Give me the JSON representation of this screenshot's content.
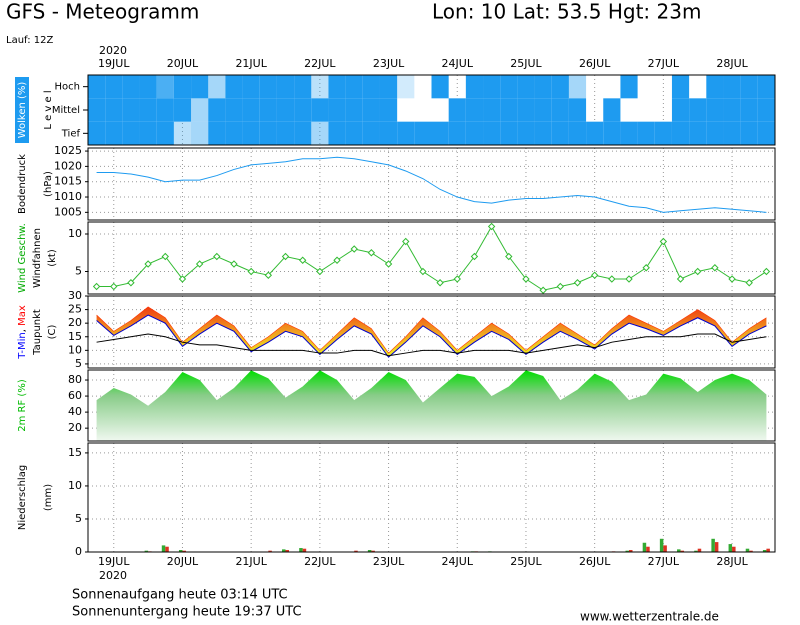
{
  "chart_data": {
    "type": "meteogram",
    "title": "GFS - Meteogramm",
    "location": "Lon: 10 Lat: 53.5 Hgt: 23m",
    "run": "Lauf: 12Z",
    "year": "2020",
    "sunrise": "Sonnenaufgang heute 03:14 UTC",
    "sunset": "Sonnenuntergang heute 19:37 UTC",
    "source": "www.wetterzentrale.de",
    "xlim": [
      -0.375,
      9.625
    ],
    "xticks": [
      {
        "value": 0,
        "label": "19JUL"
      },
      {
        "value": 1,
        "label": "20JUL"
      },
      {
        "value": 2,
        "label": "21JUL"
      },
      {
        "value": 3,
        "label": "22JUL"
      },
      {
        "value": 4,
        "label": "23JUL"
      },
      {
        "value": 5,
        "label": "24JUL"
      },
      {
        "value": 6,
        "label": "25JUL"
      },
      {
        "value": 7,
        "label": "26JUL"
      },
      {
        "value": 8,
        "label": "27JUL"
      },
      {
        "value": 9,
        "label": "28JUL"
      }
    ],
    "x": [
      -0.25,
      0,
      0.25,
      0.5,
      0.75,
      1,
      1.25,
      1.5,
      1.75,
      2,
      2.25,
      2.5,
      2.75,
      3,
      3.25,
      3.5,
      3.75,
      4,
      4.25,
      4.5,
      4.75,
      5,
      5.25,
      5.5,
      5.75,
      6,
      6.25,
      6.5,
      6.75,
      7,
      7.25,
      7.5,
      7.75,
      8,
      8.25,
      8.5,
      8.75,
      9,
      9.25,
      9.5
    ],
    "panels": [
      {
        "type": "clouds",
        "label_lines": [
          [
            {
              "text": "Wolken (%)",
              "color": "#ffffff",
              "background": "#1e9bf0"
            }
          ],
          [
            {
              "text": "L e v e l"
            }
          ]
        ],
        "series": [
          {
            "name": "Tief",
            "color": "#1e9bf0",
            "values": [
              100,
              100,
              100,
              100,
              100,
              30,
              40,
              100,
              100,
              100,
              100,
              100,
              100,
              40,
              100,
              100,
              100,
              100,
              100,
              100,
              100,
              100,
              100,
              100,
              100,
              100,
              100,
              100,
              100,
              100,
              100,
              100,
              100,
              100,
              100,
              100,
              100,
              100,
              100,
              100
            ]
          },
          {
            "name": "Mittel",
            "color": "#1e9bf0",
            "values": [
              100,
              100,
              100,
              100,
              100,
              100,
              40,
              100,
              100,
              100,
              100,
              100,
              100,
              100,
              100,
              100,
              100,
              100,
              0,
              0,
              0,
              100,
              100,
              100,
              100,
              100,
              100,
              100,
              100,
              0,
              100,
              0,
              0,
              0,
              100,
              100,
              100,
              100,
              100,
              100
            ]
          },
          {
            "name": "Hoch",
            "color": "#1e9bf0",
            "values": [
              100,
              100,
              100,
              100,
              80,
              100,
              100,
              40,
              100,
              100,
              100,
              100,
              100,
              30,
              100,
              100,
              100,
              100,
              20,
              0,
              100,
              0,
              100,
              100,
              100,
              100,
              100,
              100,
              40,
              0,
              0,
              100,
              0,
              0,
              100,
              0,
              100,
              100,
              100,
              100
            ]
          }
        ]
      },
      {
        "type": "line",
        "label_lines": [
          [
            {
              "text": "Bodendruck"
            }
          ],
          [
            {
              "text": "(hPa)"
            }
          ]
        ],
        "ylim": [
          1002.5,
          1026
        ],
        "yticks": [
          1005,
          1010,
          1015,
          1020,
          1025
        ],
        "series": [
          {
            "color": "#1e9bf0",
            "values": [
              1018,
              1018,
              1017.5,
              1016.5,
              1015,
              1015.5,
              1015.5,
              1017,
              1019,
              1020.5,
              1021,
              1021.5,
              1022.5,
              1022.5,
              1023,
              1022.5,
              1021.5,
              1020.5,
              1018.5,
              1016,
              1012.5,
              1010,
              1008.5,
              1008,
              1009,
              1009.5,
              1009.5,
              1010,
              1010.5,
              1010,
              1008.5,
              1007,
              1006.5,
              1005,
              1005.5,
              1006,
              1006.5,
              1006,
              1005.5,
              1005
            ]
          }
        ]
      },
      {
        "type": "line",
        "markers": true,
        "label_lines": [
          [
            {
              "text": "Wind Geschw.",
              "color": "#00aa00"
            }
          ],
          [
            {
              "text": "Windfahnen"
            }
          ],
          [
            {
              "text": "(kt)"
            }
          ]
        ],
        "ylim": [
          2,
          11.6
        ],
        "yticks": [
          5,
          10
        ],
        "series": [
          {
            "color": "#33bb33",
            "values": [
              3,
              3,
              3.5,
              6,
              7,
              4,
              6,
              7,
              6,
              5,
              4.5,
              7,
              6.5,
              5,
              6.5,
              8,
              7.5,
              6,
              9,
              5,
              3.5,
              4,
              7,
              11,
              7,
              4,
              2.5,
              3,
              3.5,
              4.5,
              4,
              4,
              5.5,
              9,
              4,
              5,
              5.5,
              4,
              3.5,
              5
            ]
          }
        ]
      },
      {
        "type": "band",
        "label_lines": [
          [
            {
              "text": "T-Min",
              "color": "#0000ff"
            },
            {
              "text": ", "
            },
            {
              "text": "Max",
              "color": "#ff0000"
            }
          ],
          [
            {
              "text": "Taupunkt"
            }
          ],
          [
            {
              "text": "(C)"
            }
          ]
        ],
        "ylim": [
          3.5,
          30
        ],
        "yticks": [
          5,
          10,
          15,
          20,
          25,
          30
        ],
        "series": [
          {
            "name": "T-Min",
            "color": "#0000cc",
            "values": [
              21,
              15.5,
              19,
              23,
              20,
              11.5,
              16,
              20,
              17,
              9.5,
              13,
              17,
              15,
              8.5,
              14,
              19,
              16,
              7.5,
              13,
              19,
              15,
              8.5,
              13,
              17,
              14,
              8.5,
              13,
              17,
              14,
              10.5,
              16,
              20,
              18,
              15.5,
              19,
              22,
              19,
              11.5,
              16,
              19
            ]
          },
          {
            "name": "Max",
            "color": "#ff3300",
            "values": [
              23,
              17,
              21,
              26,
              22,
              13,
              18,
              23,
              19,
              11,
              15,
              20,
              17,
              10,
              16,
              22,
              18,
              9,
              15,
              22,
              17,
              10,
              15,
              20,
              16,
              10,
              15,
              20,
              16,
              12,
              18,
              23,
              20,
              17,
              21,
              25,
              21,
              13,
              18,
              22
            ]
          },
          {
            "name": "Taupunkt",
            "color": "#000000",
            "values": [
              13,
              14,
              15,
              16,
              15,
              13,
              12,
              12,
              11,
              10,
              10,
              10,
              10,
              9,
              9,
              10,
              10,
              8,
              9,
              10,
              10,
              9,
              10,
              10,
              10,
              9,
              10,
              11,
              12,
              11,
              13,
              14,
              15,
              15,
              15,
              16,
              16,
              13,
              14,
              15
            ]
          }
        ]
      },
      {
        "type": "area",
        "label_lines": [
          [
            {
              "text": "2m RF (%)",
              "color": "#00bb00"
            }
          ]
        ],
        "ylim": [
          4,
          92.5
        ],
        "yticks": [
          20,
          40,
          60,
          80
        ],
        "series": [
          {
            "color": "#00cc00",
            "values": [
              55,
              70,
              62,
              48,
              65,
              90,
              80,
              55,
              70,
              92,
              82,
              58,
              72,
              92,
              80,
              55,
              70,
              90,
              80,
              52,
              70,
              88,
              84,
              60,
              72,
              92,
              85,
              55,
              68,
              88,
              78,
              55,
              62,
              88,
              82,
              65,
              80,
              88,
              80,
              62
            ]
          }
        ]
      },
      {
        "type": "bar",
        "label_lines": [
          [
            {
              "text": "Niederschlag"
            }
          ],
          [
            {
              "text": "(mm)"
            }
          ]
        ],
        "ylim": [
          0,
          16.5
        ],
        "yticks": [
          0,
          5,
          10,
          15
        ],
        "series": [
          {
            "color": "#33aa33",
            "values": [
              0,
              0,
              0,
              0.2,
              1.0,
              0.3,
              0,
              0,
              0,
              0,
              0,
              0.4,
              0.6,
              0,
              0,
              0,
              0.3,
              0,
              0,
              0,
              0,
              0,
              0.1,
              0.1,
              0,
              0,
              0,
              0,
              0,
              0,
              0,
              0.2,
              1.4,
              2.0,
              0.4,
              0.2,
              2.0,
              1.2,
              0.5,
              0.3
            ]
          },
          {
            "color": "#dd3322",
            "values": [
              0,
              0,
              0,
              0.1,
              0.8,
              0.2,
              0,
              0,
              0,
              0,
              0.2,
              0.3,
              0.5,
              0,
              0,
              0.2,
              0.2,
              0,
              0,
              0,
              0,
              0,
              0.1,
              0,
              0,
              0,
              0,
              0,
              0,
              0,
              0.1,
              0.3,
              0.8,
              1.0,
              0.2,
              0.5,
              1.5,
              0.8,
              0.2,
              0.5
            ]
          }
        ]
      }
    ]
  }
}
